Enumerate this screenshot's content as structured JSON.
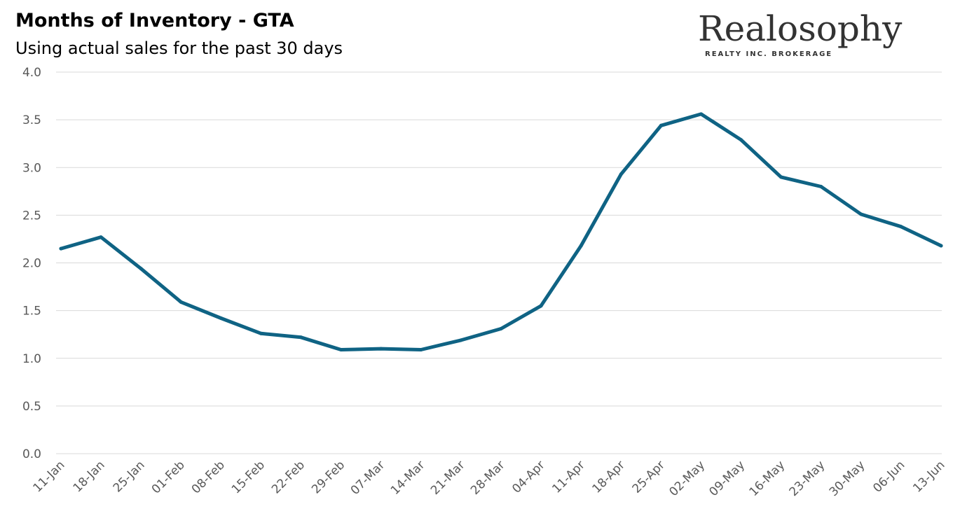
{
  "chart_data": {
    "type": "line",
    "title": "Months of Inventory - GTA",
    "subtitle": "Using actual sales for the past 30 days",
    "xlabel": "",
    "ylabel": "",
    "ylim": [
      0,
      4
    ],
    "yticks": [
      "0.0",
      "0.5",
      "1.0",
      "1.5",
      "2.0",
      "2.5",
      "3.0",
      "3.5",
      "4.0"
    ],
    "grid": true,
    "legend": "none",
    "categories": [
      "11-Jan",
      "18-Jan",
      "25-Jan",
      "01-Feb",
      "08-Feb",
      "15-Feb",
      "22-Feb",
      "29-Feb",
      "07-Mar",
      "14-Mar",
      "21-Mar",
      "28-Mar",
      "04-Apr",
      "11-Apr",
      "18-Apr",
      "25-Apr",
      "02-May",
      "09-May",
      "16-May",
      "23-May",
      "30-May",
      "06-Jun",
      "13-Jun"
    ],
    "series": [
      {
        "values": [
          2.15,
          2.27,
          1.94,
          1.59,
          1.42,
          1.26,
          1.22,
          1.09,
          1.1,
          1.09,
          1.19,
          1.31,
          1.55,
          2.18,
          2.93,
          3.44,
          3.56,
          3.29,
          2.9,
          2.8,
          2.51,
          2.38,
          2.18
        ]
      }
    ],
    "colors": {
      "line": "#0f6384",
      "grid": "#d9d9d9",
      "tick_text": "#595959"
    }
  },
  "logo": {
    "wordmark": "Realosophy",
    "tagline": "REALTY INC. BROKERAGE"
  }
}
